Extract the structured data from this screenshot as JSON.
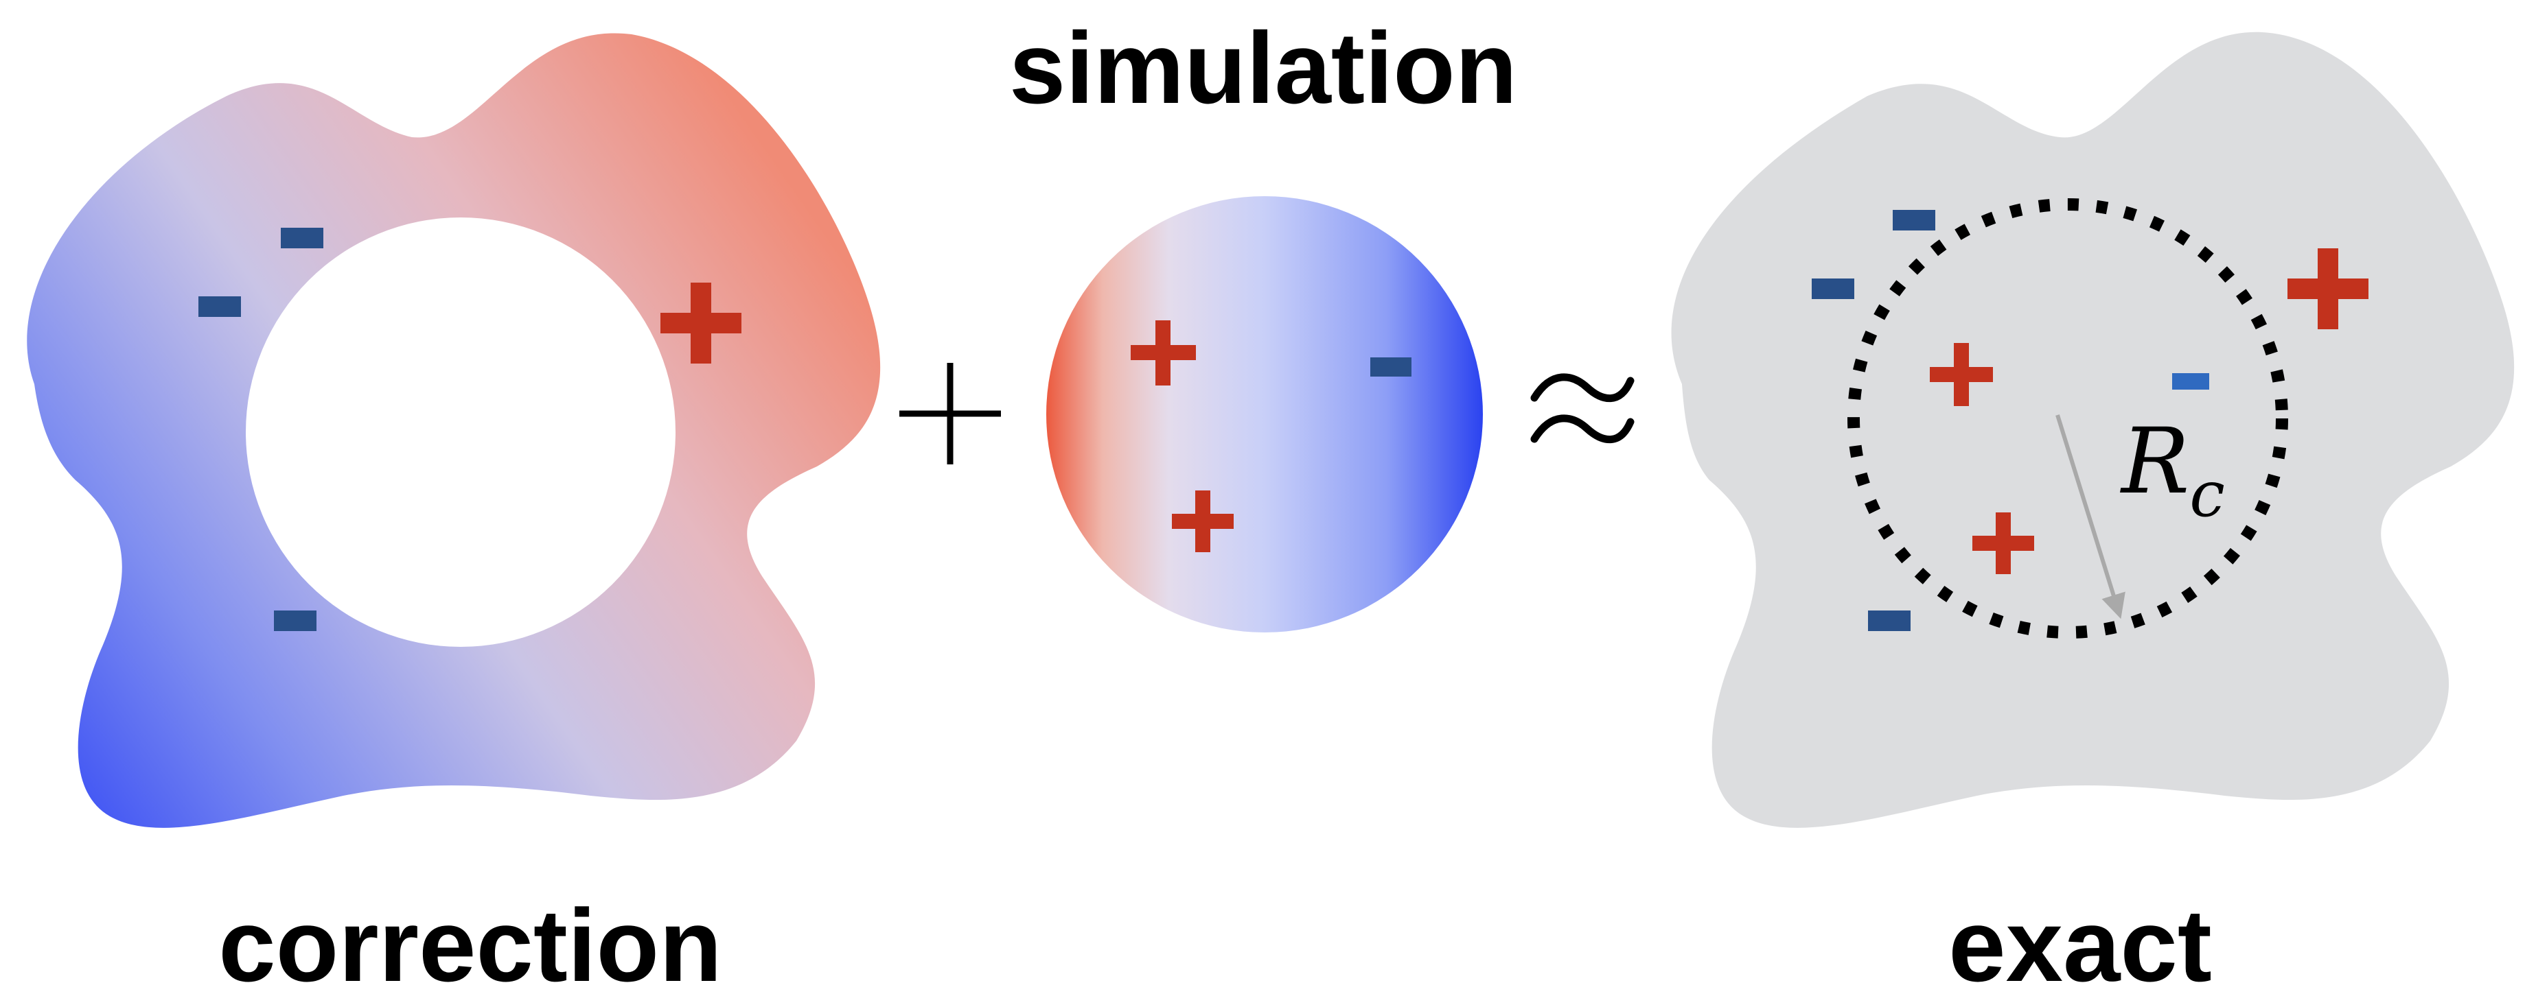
{
  "labels": {
    "simulation": "simulation",
    "correction": "correction",
    "exact": "exact",
    "radius_main": "R",
    "radius_sub": "c"
  },
  "operators": {
    "plus": "+",
    "approx": "≈"
  },
  "colors": {
    "positive_charge": "#c2321d",
    "negative_charge": "#284f88",
    "negative_charge_inner": "#2f6ac0",
    "gradient_blue": "#3448f2",
    "gradient_light": "#cfd4f5",
    "gradient_red": "#ef8470",
    "exact_region": "#dcdddf",
    "cutoff_circle": "#000000",
    "radius_arrow": "#a9a9a9"
  }
}
